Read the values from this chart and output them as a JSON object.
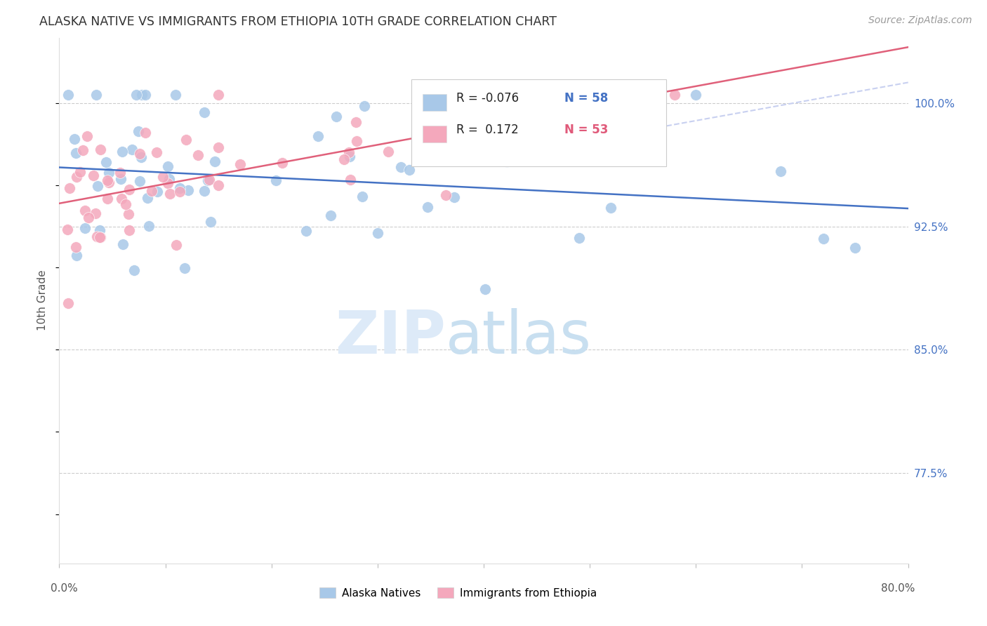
{
  "title": "ALASKA NATIVE VS IMMIGRANTS FROM ETHIOPIA 10TH GRADE CORRELATION CHART",
  "source_text": "Source: ZipAtlas.com",
  "ylabel": "10th Grade",
  "yticks_shown": [
    1.0,
    0.925,
    0.85,
    0.775
  ],
  "ytick_labels_shown": [
    "100.0%",
    "92.5%",
    "85.0%",
    "77.5%"
  ],
  "xmin": 0.0,
  "xmax": 0.8,
  "ymin": 0.72,
  "ymax": 1.04,
  "legend_blue_label": "Alaska Natives",
  "legend_pink_label": "Immigrants from Ethiopia",
  "R_blue": -0.076,
  "N_blue": 58,
  "R_pink": 0.172,
  "N_pink": 53,
  "blue_color": "#a8c8e8",
  "pink_color": "#f4a8bc",
  "trend_blue_color": "#4472c4",
  "trend_pink_color": "#e0607a",
  "trend_ext_color": "#c8d0f0"
}
